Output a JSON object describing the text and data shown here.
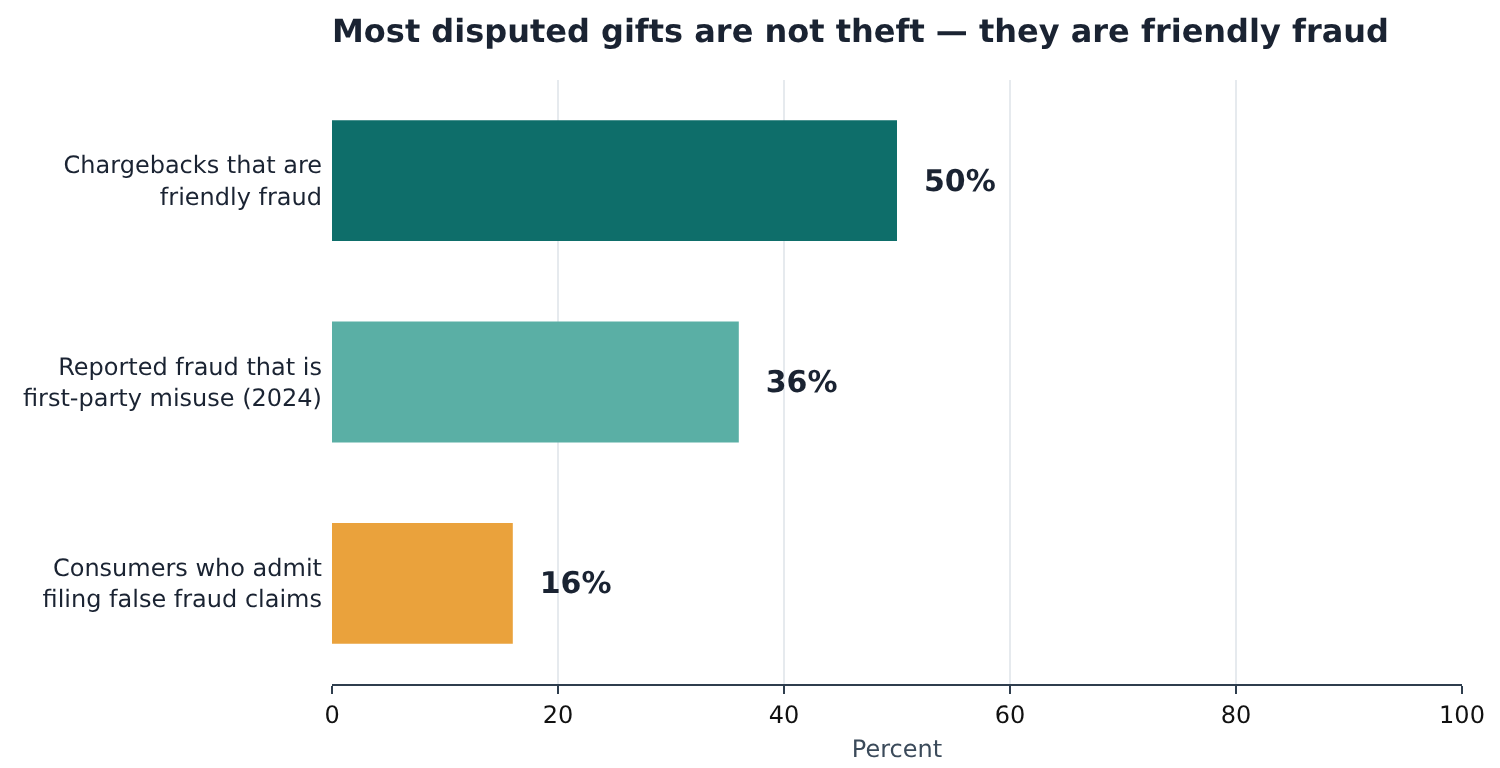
{
  "chart_data": {
    "type": "bar",
    "orientation": "horizontal",
    "title": "Most disputed gifts are not theft — they are friendly fraud",
    "xlabel": "Percent",
    "categories": [
      "Chargebacks that are friendly fraud",
      "Reported fraud that is first-party misuse (2024)",
      "Consumers who admit filing false fraud claims"
    ],
    "values": [
      50,
      36,
      16
    ],
    "colors": [
      "#0e6e6a",
      "#5aafa5",
      "#eaa23c"
    ],
    "value_labels": [
      "50%",
      "36%",
      "16%"
    ],
    "xlim": [
      0,
      100
    ],
    "xticks": [
      0,
      20,
      40,
      60,
      80,
      100
    ],
    "grid": "x"
  }
}
